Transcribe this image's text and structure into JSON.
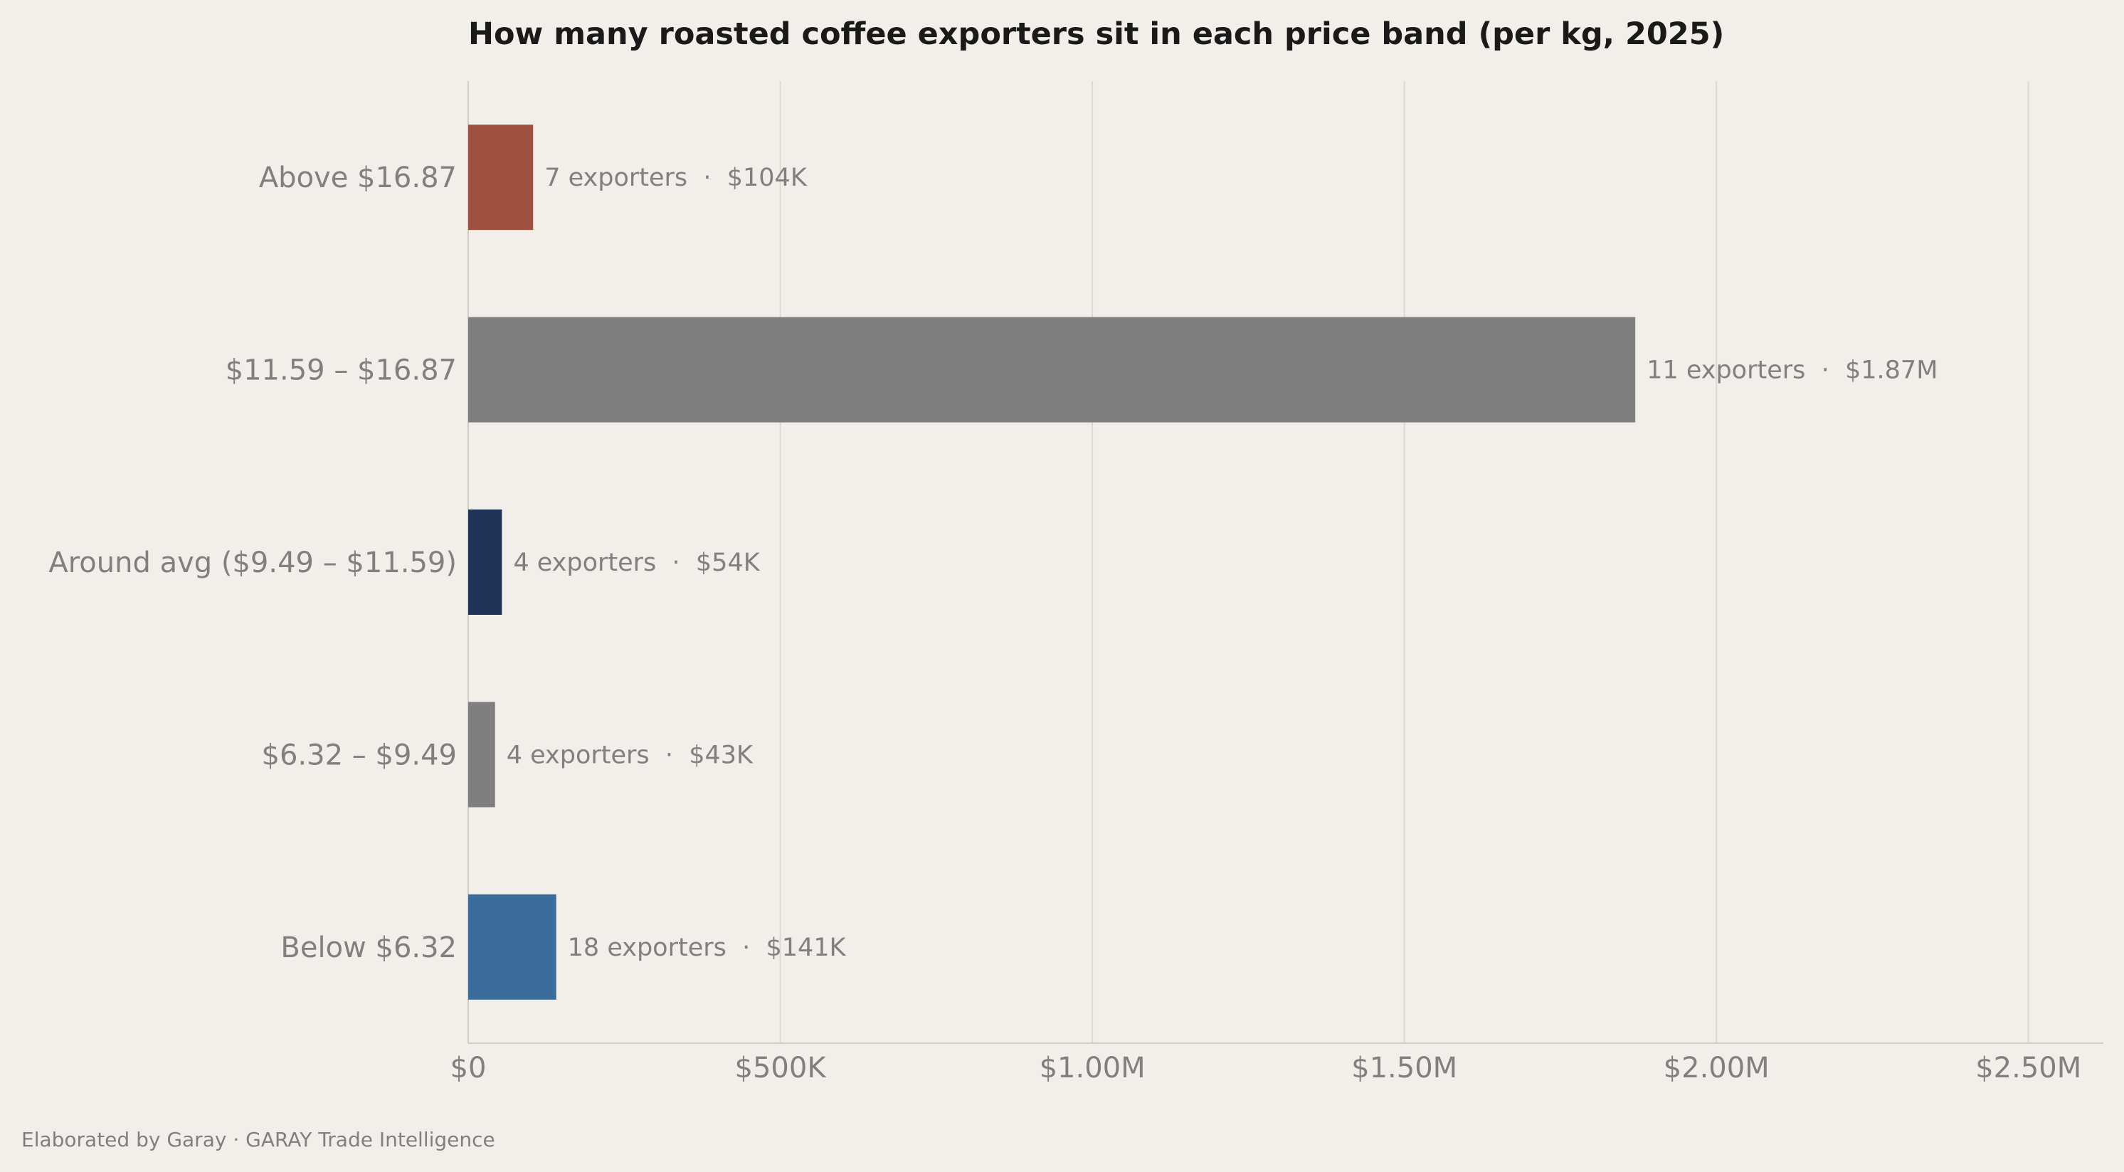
{
  "chart_data": {
    "type": "bar",
    "orientation": "horizontal",
    "title": "How many roasted coffee exporters sit in each price band (per kg, 2025)",
    "categories": [
      "Above $16.87",
      "$11.59 – $16.87",
      "Around avg ($9.49 – $11.59)",
      "$6.32 – $9.49",
      "Below $6.32"
    ],
    "values": [
      104000,
      1870000,
      54000,
      43000,
      141000
    ],
    "data_labels": [
      "7 exporters  ·  $104K",
      "11 exporters  ·  $1.87M",
      "4 exporters  ·  $54K",
      "4 exporters  ·  $43K",
      "18 exporters  ·  $141K"
    ],
    "bar_colors": [
      "#a0503e",
      "#7f7f7f",
      "#1e3557",
      "#7f7f7f",
      "#3a6d9b"
    ],
    "x_ticks": [
      0,
      500000,
      1000000,
      1500000,
      2000000,
      2500000
    ],
    "x_tick_labels": [
      "$0",
      "$500K",
      "$1.00M",
      "$1.50M",
      "$2.00M",
      "$2.50M"
    ],
    "xlim": [
      0,
      2620000
    ],
    "grid": "vertical",
    "legend": "none"
  },
  "footer": {
    "text": "Elaborated by Garay  ·  GARAY Trade Intelligence"
  },
  "colors": {
    "background": "#f2eeea",
    "grid": "#dcd8d4",
    "axis": "#cfcbc7",
    "text_muted": "#808080",
    "title": "#1a1a1a"
  }
}
